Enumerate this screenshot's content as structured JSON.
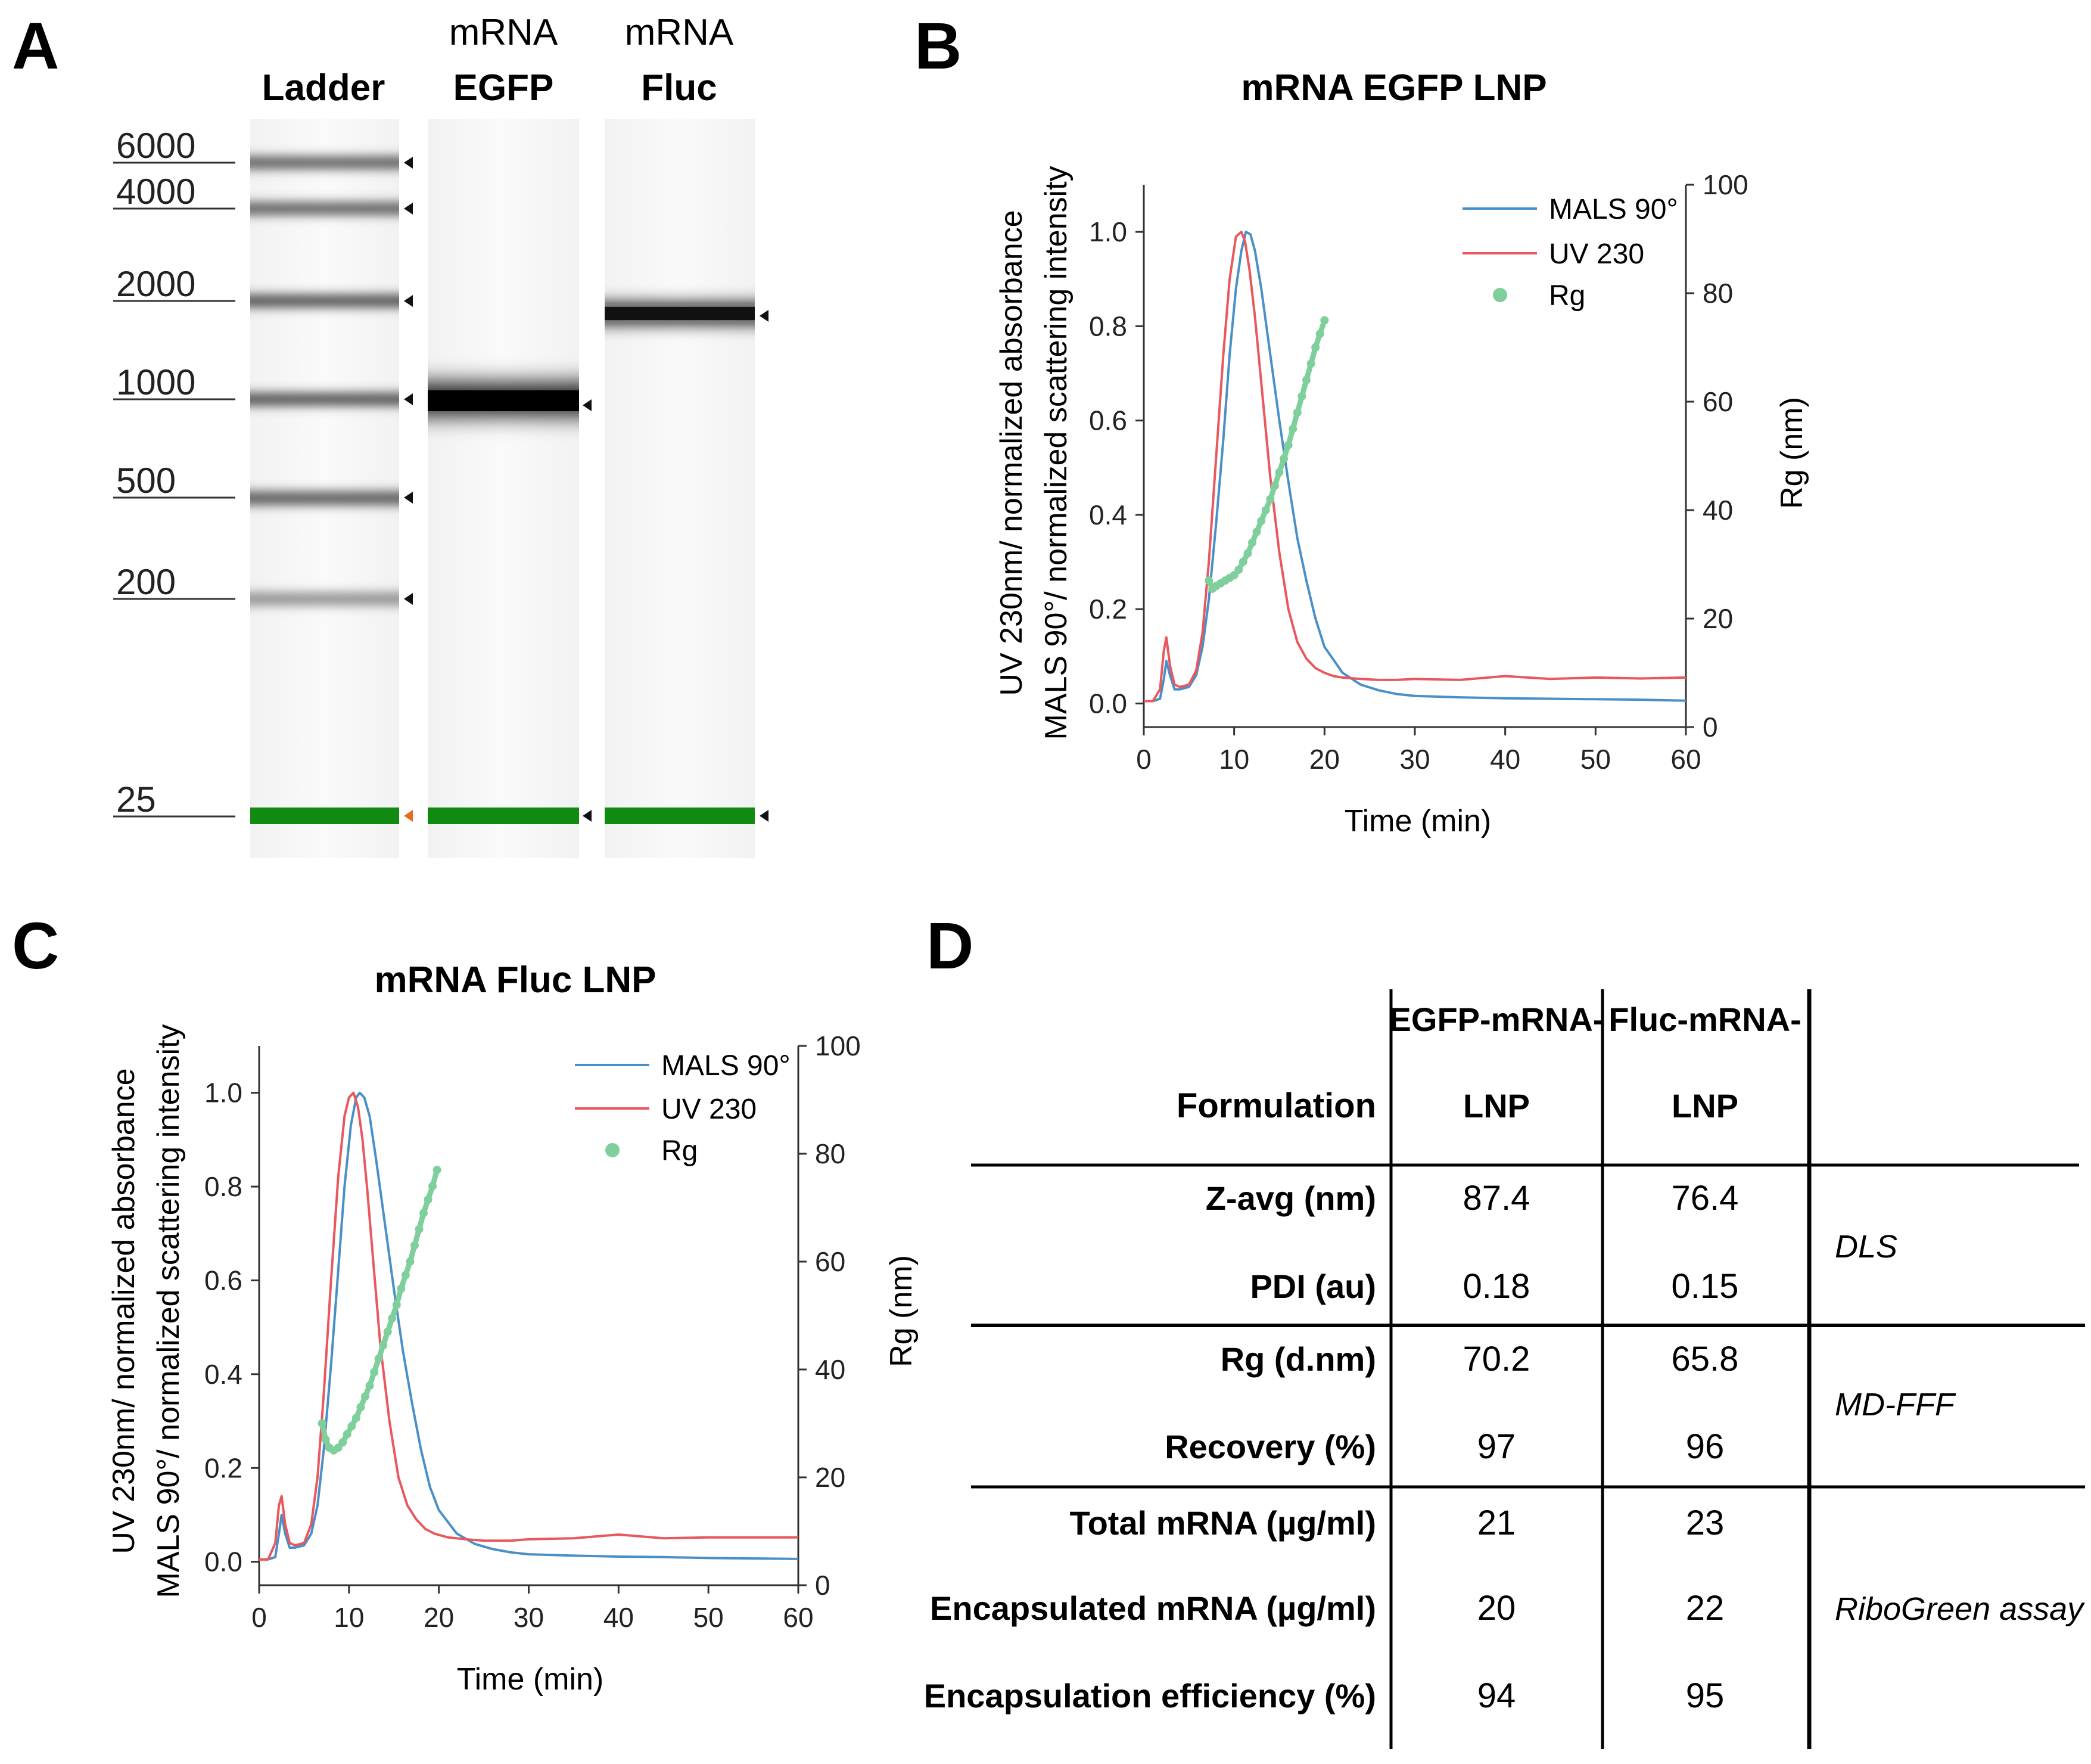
{
  "panel_labels": {
    "a": "A",
    "b": "B",
    "c": "C",
    "d": "D"
  },
  "colors": {
    "mals": "#4a90c8",
    "uv": "#e8585e",
    "rg": "#7fcf9c",
    "marker_green": "#118a11",
    "marker_orange": "#e86a1a",
    "axis": "#333333"
  },
  "chart_data": [
    {
      "type": "gel",
      "panel": "A",
      "lanes": [
        {
          "id": "ladder",
          "top": "",
          "bottom": "Ladder"
        },
        {
          "id": "egfp",
          "top": "mRNA",
          "bottom": "EGFP"
        },
        {
          "id": "fluc",
          "top": "mRNA",
          "bottom": "Fluc"
        }
      ],
      "ladder_sizes": [
        "6000",
        "4000",
        "2000",
        "1000",
        "500",
        "200",
        "25"
      ],
      "ladder_values": [
        6000,
        4000,
        2000,
        1000,
        500,
        200,
        25
      ],
      "egfp_band_nt": 1000,
      "fluc_band_nt": 1850
    },
    {
      "type": "line",
      "panel": "B",
      "title": "mRNA EGFP LNP",
      "xlabel": "Time (min)",
      "ylabel_line1": "UV 230nm/ normalized absorbance",
      "ylabel_line2": "MALS 90°/ normalized scattering intensity",
      "y2label": "Rg (nm)",
      "xlim": [
        0,
        60
      ],
      "ylim": [
        -0.05,
        1.1
      ],
      "y2lim": [
        0,
        100
      ],
      "xticks": [
        "0",
        "10",
        "20",
        "30",
        "40",
        "50",
        "60"
      ],
      "yticks": [
        "0.0",
        "0.2",
        "0.4",
        "0.6",
        "0.8",
        "1.0"
      ],
      "y2ticks": [
        "0",
        "20",
        "40",
        "60",
        "80",
        "100"
      ],
      "legend": [
        "MALS 90°",
        "UV 230",
        "Rg"
      ],
      "series": [
        {
          "name": "MALS 90°",
          "x": [
            0,
            1,
            1.8,
            2.2,
            2.5,
            2.9,
            3.4,
            4,
            5,
            5.8,
            6.5,
            7.2,
            8,
            8.8,
            9.5,
            10.2,
            10.8,
            11.3,
            11.8,
            12.3,
            13,
            14,
            15,
            16,
            17,
            18,
            19,
            20,
            22,
            24,
            26,
            28,
            30,
            35,
            40,
            45,
            50,
            55,
            60
          ],
          "y": [
            0.005,
            0.005,
            0.01,
            0.05,
            0.09,
            0.06,
            0.03,
            0.03,
            0.035,
            0.06,
            0.12,
            0.22,
            0.38,
            0.56,
            0.74,
            0.88,
            0.96,
            1.0,
            0.995,
            0.96,
            0.88,
            0.74,
            0.6,
            0.47,
            0.35,
            0.26,
            0.18,
            0.12,
            0.065,
            0.04,
            0.028,
            0.02,
            0.016,
            0.013,
            0.011,
            0.01,
            0.009,
            0.008,
            0.006
          ]
        },
        {
          "name": "UV 230",
          "x": [
            0,
            1,
            1.8,
            2.2,
            2.5,
            2.9,
            3.4,
            4,
            5,
            5.8,
            6.5,
            7.2,
            8,
            8.8,
            9.5,
            10.2,
            10.8,
            11.2,
            11.7,
            12.3,
            13,
            14,
            15,
            16,
            17,
            18,
            19,
            20,
            21,
            22,
            24,
            26,
            28,
            30,
            35,
            40,
            45,
            50,
            55,
            60
          ],
          "y": [
            0.005,
            0.005,
            0.03,
            0.11,
            0.14,
            0.08,
            0.04,
            0.035,
            0.04,
            0.07,
            0.15,
            0.3,
            0.52,
            0.74,
            0.9,
            0.99,
            1.0,
            0.98,
            0.92,
            0.82,
            0.68,
            0.48,
            0.32,
            0.2,
            0.13,
            0.095,
            0.075,
            0.065,
            0.058,
            0.055,
            0.052,
            0.05,
            0.05,
            0.052,
            0.05,
            0.058,
            0.052,
            0.055,
            0.053,
            0.055
          ]
        },
        {
          "name": "Rg",
          "x": [
            7.2,
            7.6,
            8,
            8.5,
            9,
            9.5,
            10,
            10.5,
            11,
            11.5,
            12,
            12.5,
            13,
            13.5,
            14,
            14.5,
            15,
            15.5,
            16,
            16.5,
            17,
            17.5,
            18,
            18.5,
            19,
            19.5,
            20
          ],
          "y": [
            27,
            25.5,
            26,
            26.5,
            27,
            27.5,
            28,
            29,
            30.5,
            32,
            34,
            36,
            38,
            40,
            42,
            44.5,
            47,
            49.5,
            52,
            55,
            58,
            61,
            64,
            67,
            70,
            72.5,
            75
          ]
        }
      ]
    },
    {
      "type": "line",
      "panel": "C",
      "title": "mRNA Fluc LNP",
      "xlabel": "Time (min)",
      "ylabel_line1": "UV 230nm/ normalized absorbance",
      "ylabel_line2": "MALS 90°/ normalized scattering intensity",
      "y2label": "Rg (nm)",
      "xlim": [
        0,
        60
      ],
      "ylim": [
        -0.05,
        1.1
      ],
      "y2lim": [
        0,
        100
      ],
      "xticks": [
        "0",
        "10",
        "20",
        "30",
        "40",
        "50",
        "60"
      ],
      "yticks": [
        "0.0",
        "0.2",
        "0.4",
        "0.6",
        "0.8",
        "1.0"
      ],
      "y2ticks": [
        "0",
        "20",
        "40",
        "60",
        "80",
        "100"
      ],
      "legend": [
        "MALS 90°",
        "UV 230",
        "Rg"
      ],
      "series": [
        {
          "name": "MALS 90°",
          "x": [
            0,
            1,
            1.8,
            2.2,
            2.5,
            2.9,
            3.4,
            4,
            5,
            5.8,
            6.5,
            7.2,
            8,
            8.8,
            9.5,
            10.2,
            10.8,
            11.2,
            11.7,
            12.3,
            13,
            14,
            15,
            16,
            17,
            18,
            19,
            20,
            22,
            24,
            26,
            28,
            30,
            35,
            40,
            45,
            50,
            55,
            60
          ],
          "y": [
            0.005,
            0.005,
            0.01,
            0.06,
            0.1,
            0.06,
            0.03,
            0.03,
            0.035,
            0.06,
            0.12,
            0.24,
            0.42,
            0.62,
            0.8,
            0.93,
            0.99,
            1.0,
            0.99,
            0.95,
            0.86,
            0.72,
            0.58,
            0.45,
            0.34,
            0.24,
            0.16,
            0.11,
            0.06,
            0.038,
            0.027,
            0.02,
            0.016,
            0.013,
            0.011,
            0.01,
            0.008,
            0.007,
            0.006
          ]
        },
        {
          "name": "UV 230",
          "x": [
            0,
            1,
            1.8,
            2.2,
            2.5,
            2.9,
            3.4,
            4,
            5,
            5.8,
            6.5,
            7.2,
            8,
            8.8,
            9.5,
            10,
            10.5,
            11,
            11.5,
            12,
            12.7,
            13.5,
            14.5,
            15.5,
            16.5,
            17.5,
            18.5,
            19.5,
            21,
            23,
            25,
            28,
            30,
            35,
            40,
            45,
            50,
            55,
            60
          ],
          "y": [
            0.005,
            0.005,
            0.04,
            0.12,
            0.14,
            0.08,
            0.04,
            0.035,
            0.04,
            0.08,
            0.18,
            0.36,
            0.6,
            0.82,
            0.95,
            0.99,
            1.0,
            0.97,
            0.9,
            0.8,
            0.64,
            0.46,
            0.3,
            0.18,
            0.12,
            0.09,
            0.07,
            0.06,
            0.052,
            0.048,
            0.045,
            0.045,
            0.048,
            0.05,
            0.058,
            0.05,
            0.052,
            0.052,
            0.052
          ]
        },
        {
          "name": "Rg",
          "x": [
            7,
            7.4,
            7.8,
            8.3,
            8.8,
            9.3,
            9.8,
            10.3,
            10.8,
            11.3,
            11.8,
            12.3,
            12.8,
            13.3,
            13.8,
            14.3,
            14.8,
            15.3,
            15.8,
            16.3,
            16.8,
            17.3,
            17.8,
            18.3,
            18.8,
            19.3,
            19.8
          ],
          "y": [
            30,
            27,
            25.5,
            25,
            25.5,
            26.5,
            28,
            29.5,
            31,
            33,
            35,
            37,
            39.5,
            42,
            44.5,
            47,
            49.5,
            52,
            55,
            57.5,
            60,
            63,
            66,
            69,
            71.5,
            74,
            77
          ]
        }
      ]
    }
  ],
  "table": {
    "header_formulation": "Formulation",
    "col1_line1": "EGFP-mRNA-",
    "col1_line2": "LNP",
    "col2_line1": "Fluc-mRNA-",
    "col2_line2": "LNP",
    "rows": [
      {
        "label": "Z-avg (nm)",
        "egfp": "87.4",
        "fluc": "76.4"
      },
      {
        "label": "PDI (au)",
        "egfp": "0.18",
        "fluc": "0.15"
      },
      {
        "label": "Rg (d.nm)",
        "egfp": "70.2",
        "fluc": "65.8"
      },
      {
        "label": "Recovery (%)",
        "egfp": "97",
        "fluc": "96"
      },
      {
        "label": "Total mRNA (µg/ml)",
        "egfp": "21",
        "fluc": "23"
      },
      {
        "label": "Encapsulated mRNA (µg/ml)",
        "egfp": "20",
        "fluc": "22"
      },
      {
        "label": "Encapsulation efficiency (%)",
        "egfp": "94",
        "fluc": "95"
      }
    ],
    "methods": [
      "DLS",
      "MD-FFF",
      "RiboGreen assay"
    ]
  }
}
